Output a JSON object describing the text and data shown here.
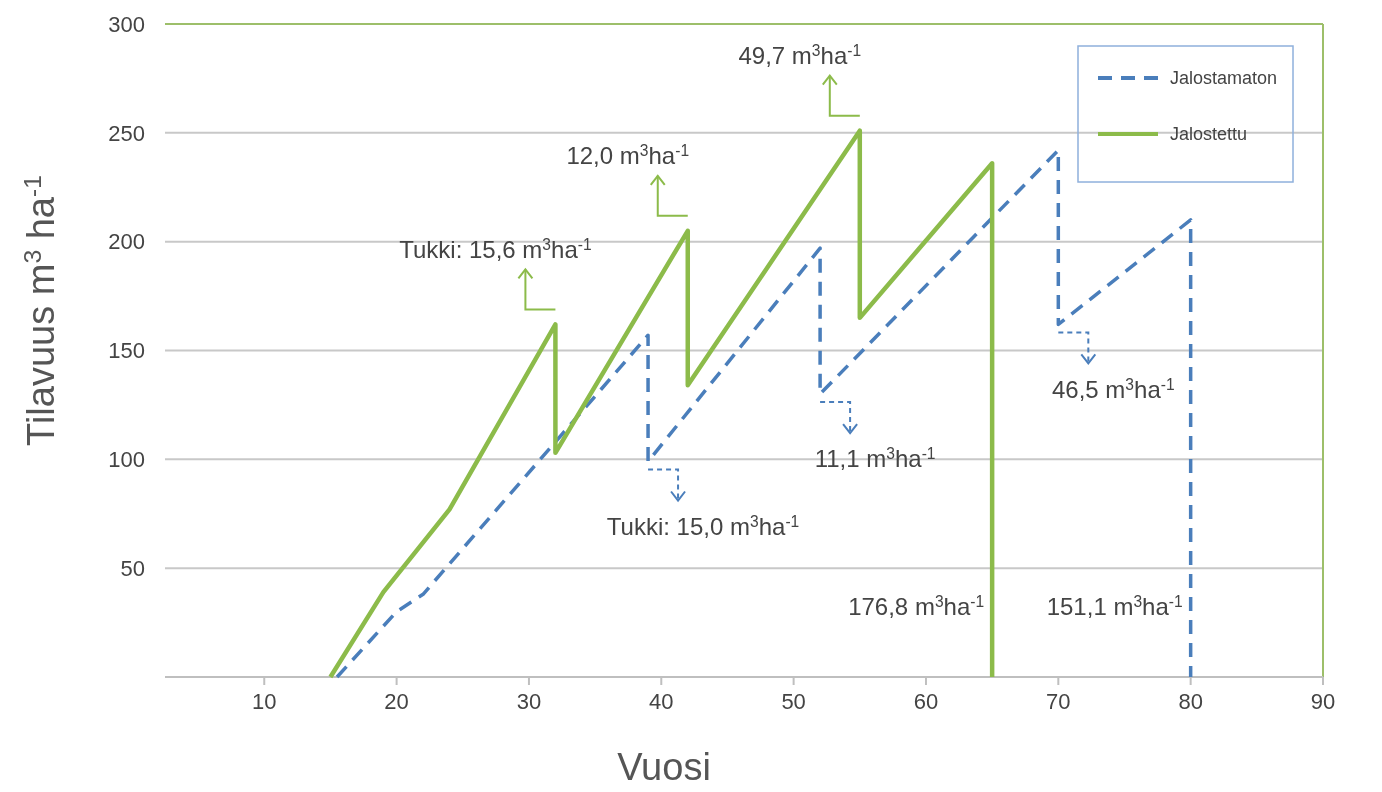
{
  "chart_data": {
    "type": "line",
    "xlabel": "Vuosi",
    "ylabel": "Tilavuus m$^{3}$ ha$^{-1}$",
    "xlim": [
      2.5,
      90
    ],
    "xticks": [
      10,
      20,
      30,
      40,
      50,
      60,
      70,
      80,
      90
    ],
    "ylim": [
      0,
      300
    ],
    "yticks": [
      {
        "value": 0,
        "label": null
      },
      50,
      100,
      150,
      200,
      250,
      300
    ],
    "grid": "y",
    "legend": "top right",
    "series": [
      {
        "name": "Jalostamaton",
        "color": "#4a7ebb",
        "line_style": "dashed",
        "x": [
          15.5,
          20,
          22,
          39,
          39,
          52,
          52,
          70,
          70,
          80,
          80
        ],
        "values": [
          0,
          30,
          38,
          157,
          99,
          197,
          130,
          242,
          162,
          210,
          0
        ]
      },
      {
        "name": "Jalostettu",
        "color": "#8cbb4a",
        "line_style": "solid",
        "x": [
          15,
          19,
          24,
          32,
          32,
          42,
          42,
          55,
          55,
          65,
          65
        ],
        "values": [
          0,
          39,
          77,
          162,
          103,
          205,
          134,
          251,
          165,
          236,
          0
        ]
      }
    ],
    "annotations": [
      "Tukki: 15,6 m$^{3}$ha$^{-1}$",
      "12,0 m$^{3}$ha$^{-1}$",
      "49,7 m$^{3}$ha$^{-1}$",
      "Tukki: 15,0 m$^{3}$ha$^{-1}$",
      "11,1 m$^{3}$ha$^{-1}$",
      "46,5 m$^{3}$ha$^{-1}$",
      "176,8 m$^{3}$ha$^{-1}$",
      "151,1 m$^{3}$ha$^{-1}$"
    ]
  }
}
